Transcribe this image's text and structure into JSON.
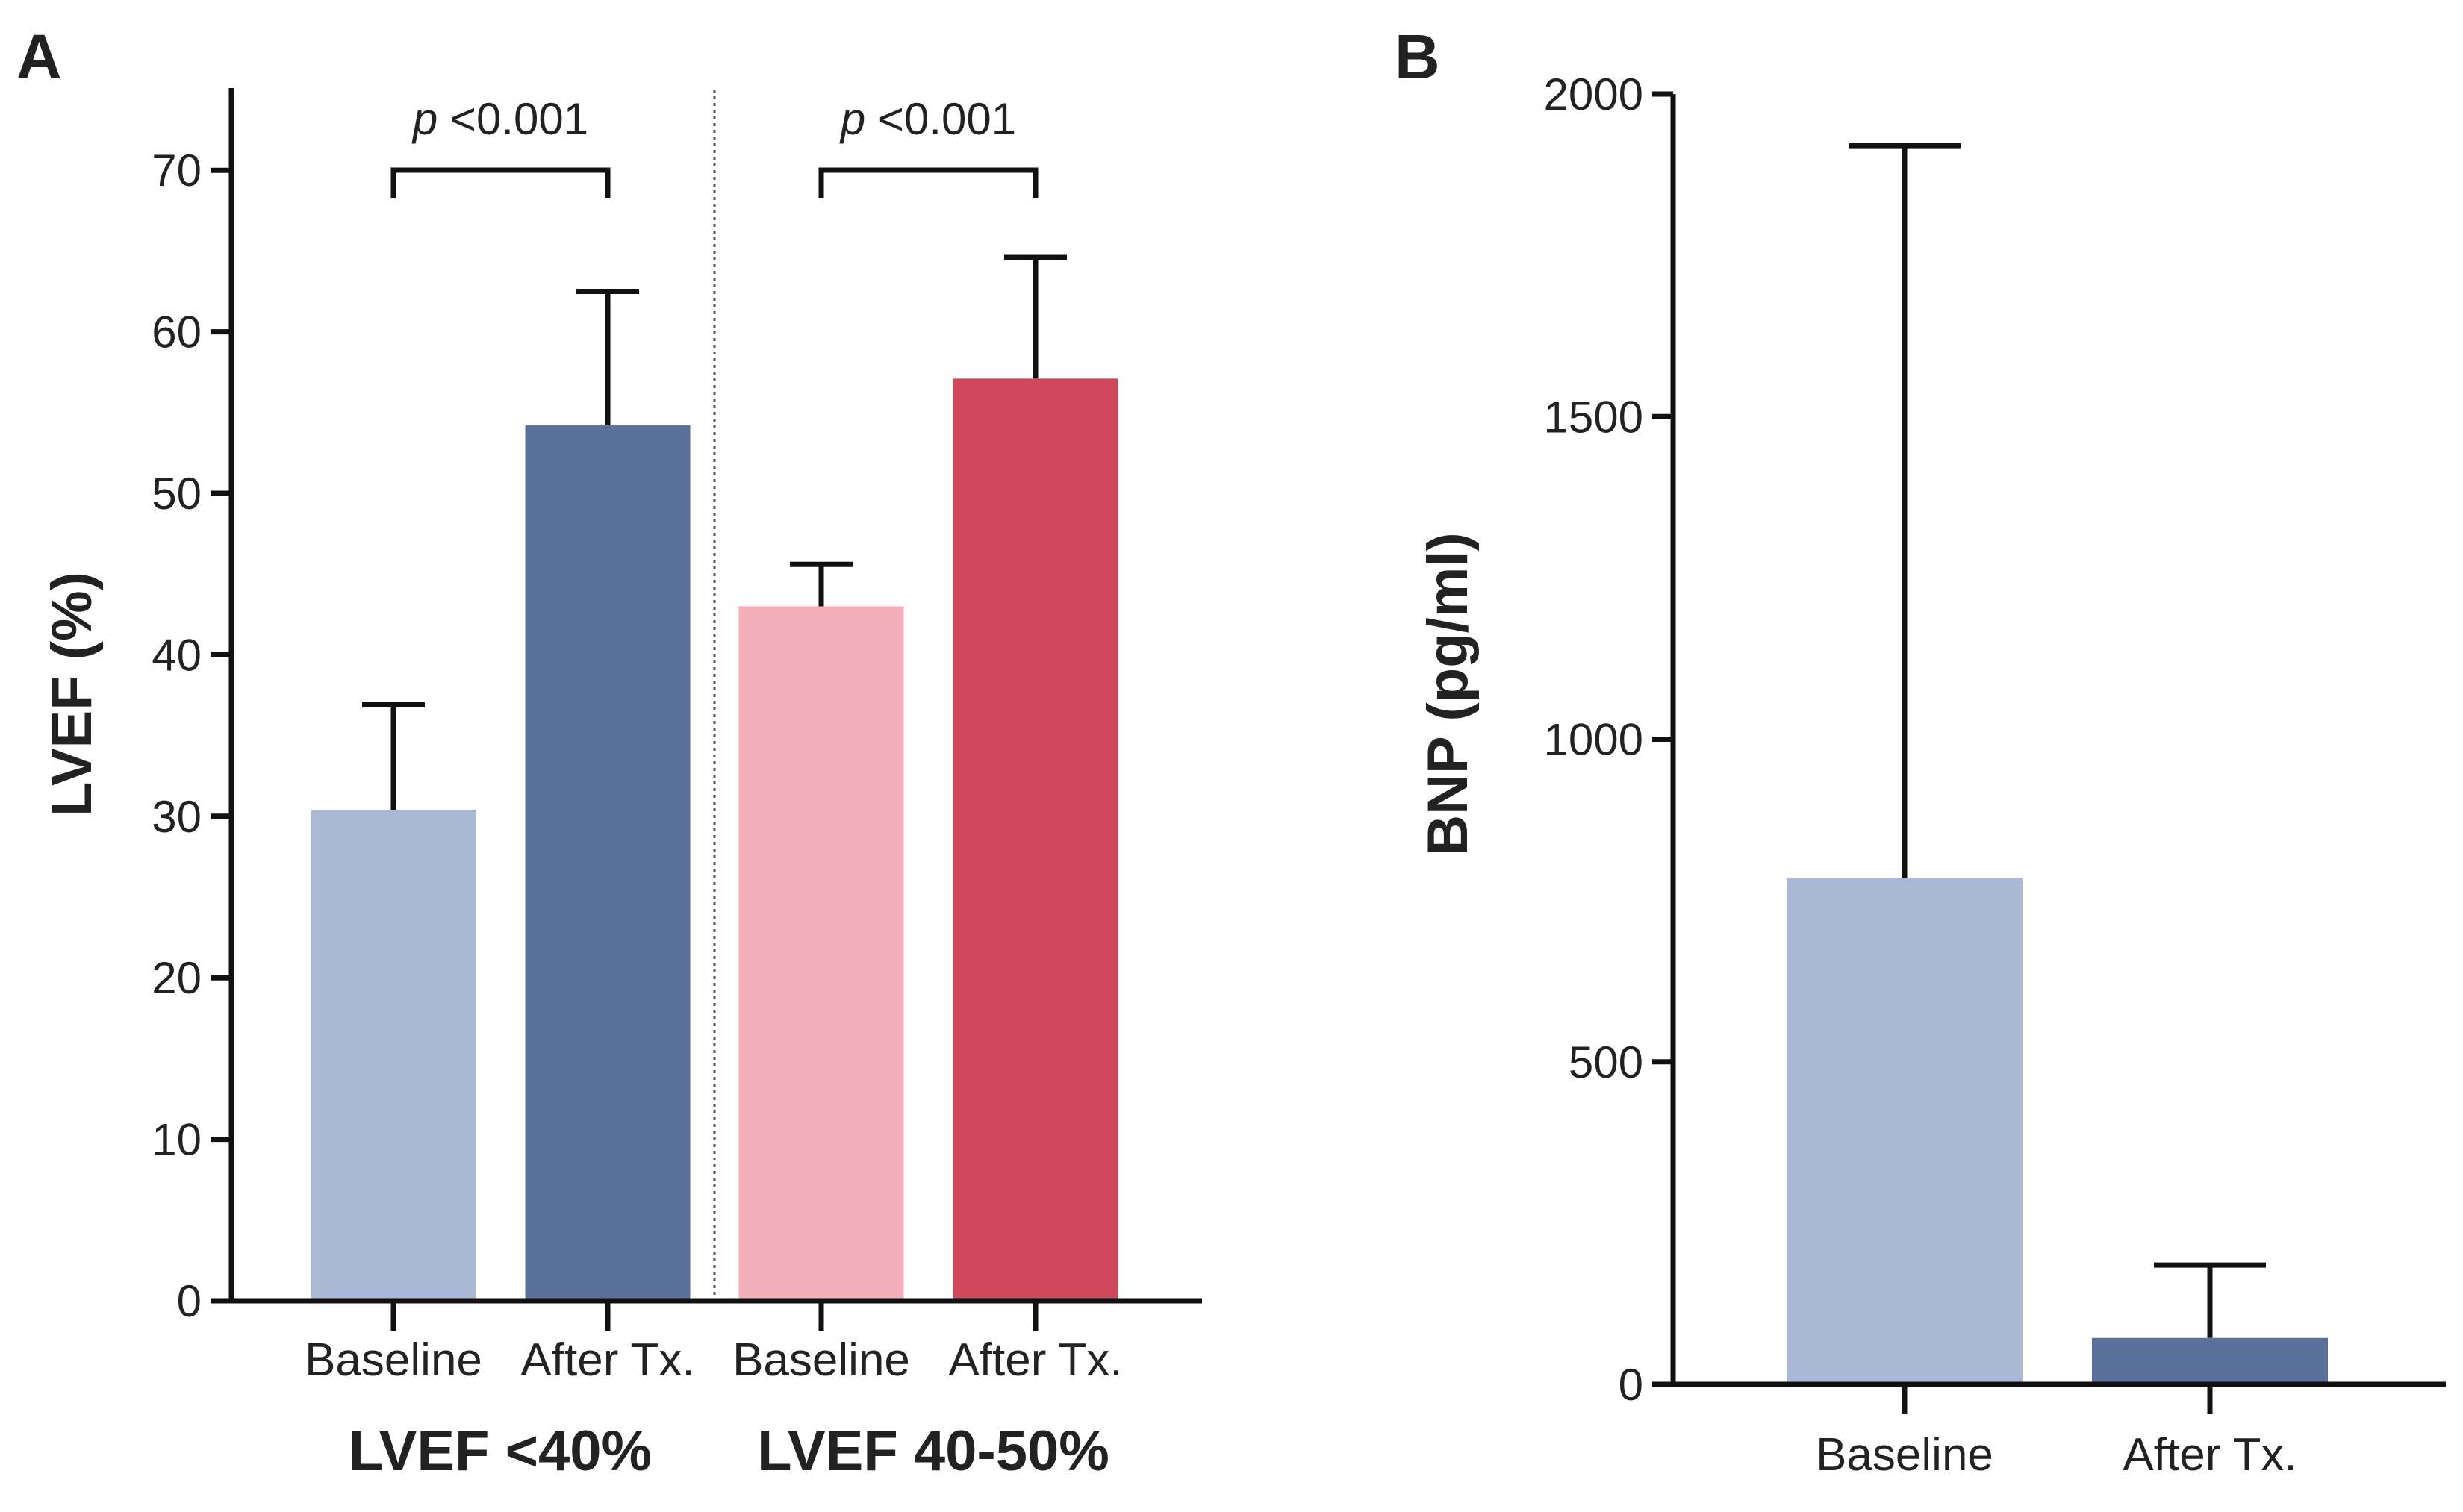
{
  "chart_data": [
    {
      "panel": "A",
      "type": "bar",
      "ylabel": "LVEF (%)",
      "ylim": [
        0,
        75
      ],
      "yticks": [
        "0",
        "10",
        "20",
        "30",
        "40",
        "50",
        "60",
        "70"
      ],
      "categories": [
        "Baseline",
        "After Tx.",
        "Baseline",
        "After Tx."
      ],
      "groups": [
        "LVEF <40%",
        "LVEF 40-50%"
      ],
      "values": [
        30.4,
        54.2,
        43.0,
        57.1
      ],
      "error_upper": [
        36.9,
        62.5,
        45.6,
        64.6
      ],
      "colors": [
        "#aab7d5",
        "#5a6f9a",
        "#f5afba",
        "#cf485c"
      ],
      "annotations": [
        {
          "text_p": "p",
          "text": "<0.001"
        },
        {
          "text_p": "p",
          "text": "<0.001"
        }
      ]
    },
    {
      "panel": "B",
      "type": "bar",
      "ylabel": "BNP (pg/ml)",
      "ylim": [
        0,
        2000
      ],
      "yticks": [
        "0",
        "500",
        "1000",
        "1500",
        "2000"
      ],
      "categories": [
        "Baseline",
        "After Tx."
      ],
      "values": [
        785,
        72
      ],
      "error_upper": [
        1920,
        185
      ],
      "colors": [
        "#aab7d5",
        "#5a6f9a"
      ]
    }
  ]
}
